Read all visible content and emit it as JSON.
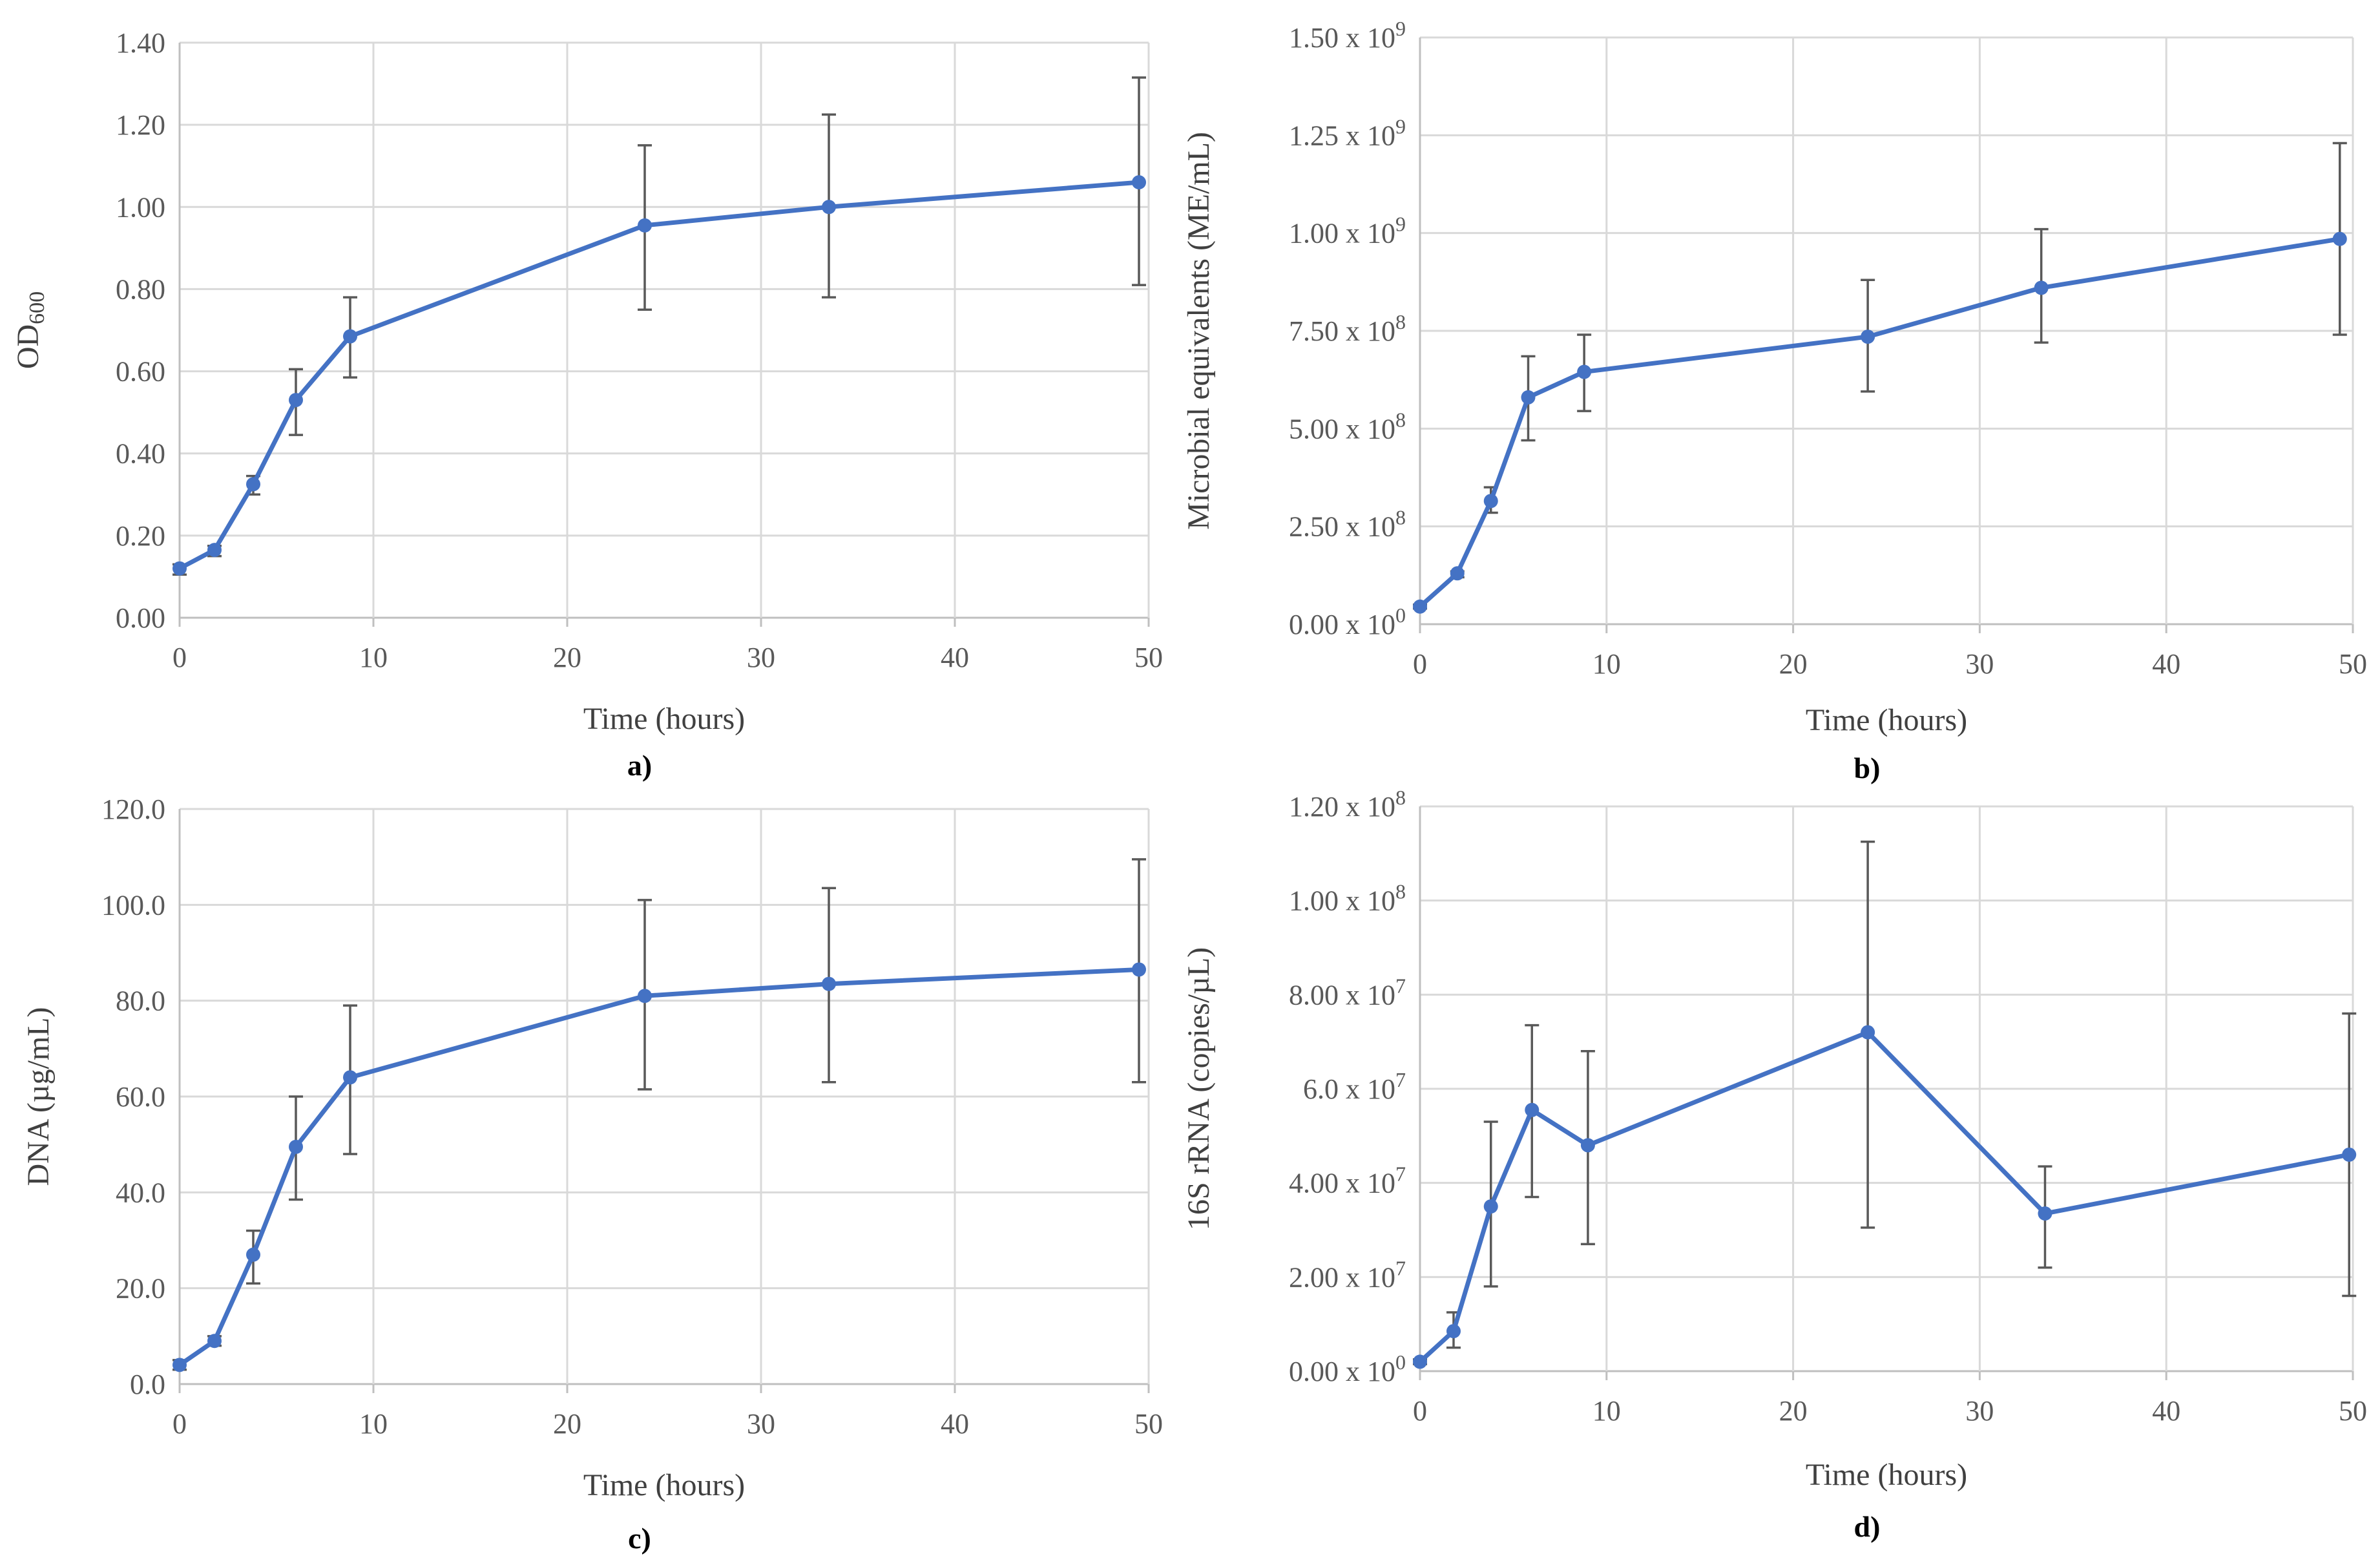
{
  "colors": {
    "series": "#4472C4"
  },
  "chart_data": [
    {
      "id": "a",
      "type": "line",
      "panel_label": "a)",
      "xlabel": "Time (hours)",
      "ylabel": "OD",
      "ylabel_sub": "600",
      "xlim": [
        0,
        50
      ],
      "ylim": [
        0,
        1.4
      ],
      "xticks": [
        0,
        10,
        20,
        30,
        40,
        50
      ],
      "yticks": [
        0.0,
        0.2,
        0.4,
        0.6,
        0.8,
        1.0,
        1.2,
        1.4
      ],
      "ytick_labels": [
        "0.00",
        "0.20",
        "0.40",
        "0.60",
        "0.80",
        "1.00",
        "1.20",
        "1.40"
      ],
      "series": [
        {
          "name": "OD600",
          "x": [
            0,
            1.8,
            3.8,
            6,
            8.8,
            24,
            33.5,
            49.5
          ],
          "y": [
            0.12,
            0.165,
            0.325,
            0.53,
            0.685,
            0.955,
            1.0,
            1.06
          ],
          "err_low": [
            0.105,
            0.15,
            0.3,
            0.445,
            0.585,
            0.75,
            0.78,
            0.81
          ],
          "err_high": [
            0.13,
            0.175,
            0.345,
            0.605,
            0.78,
            1.15,
            1.225,
            1.315
          ]
        }
      ]
    },
    {
      "id": "b",
      "type": "line",
      "panel_label": "b)",
      "xlabel": "Time (hours)",
      "ylabel": "Microbial equivalents (ME/mL)",
      "xlim": [
        0,
        50
      ],
      "ylim": [
        0,
        1500000000
      ],
      "xticks": [
        0,
        10,
        20,
        30,
        40,
        50
      ],
      "yticks": [
        0,
        250000000,
        500000000,
        750000000,
        1000000000,
        1250000000,
        1500000000
      ],
      "ytick_labels": [
        {
          "m": "0.00 x 10",
          "e": "0"
        },
        {
          "m": "2.50 x 10",
          "e": "8"
        },
        {
          "m": "5.00 x 10",
          "e": "8"
        },
        {
          "m": "7.50 x 10",
          "e": "8"
        },
        {
          "m": "1.00 x 10",
          "e": "9"
        },
        {
          "m": "1.25 x 10",
          "e": "9"
        },
        {
          "m": "1.50 x 10",
          "e": "9"
        }
      ],
      "series": [
        {
          "name": "ME/mL",
          "x": [
            0,
            2,
            3.8,
            5.8,
            8.8,
            24,
            33.3,
            49.3
          ],
          "y": [
            45000000,
            130000000,
            315000000,
            580000000,
            645000000,
            735000000,
            860000000,
            985000000
          ],
          "err_low": [
            40000000,
            120000000,
            285000000,
            470000000,
            545000000,
            595000000,
            720000000,
            740000000
          ],
          "err_high": [
            50000000,
            135000000,
            350000000,
            685000000,
            740000000,
            880000000,
            1010000000,
            1230000000
          ]
        }
      ]
    },
    {
      "id": "c",
      "type": "line",
      "panel_label": "c)",
      "xlabel": "Time (hours)",
      "ylabel": "DNA (µg/mL)",
      "xlim": [
        0,
        50
      ],
      "ylim": [
        0,
        120
      ],
      "xticks": [
        0,
        10,
        20,
        30,
        40,
        50
      ],
      "yticks": [
        0,
        20,
        40,
        60,
        80,
        100,
        120
      ],
      "ytick_labels": [
        "0.0",
        "20.0",
        "40.0",
        "60.0",
        "80.0",
        "100.0",
        "120.0"
      ],
      "series": [
        {
          "name": "DNA",
          "x": [
            0,
            1.8,
            3.8,
            6,
            8.8,
            24,
            33.5,
            49.5
          ],
          "y": [
            4,
            9,
            27,
            49.5,
            64,
            81,
            83.5,
            86.5
          ],
          "err_low": [
            3,
            8,
            21,
            38.5,
            48,
            61.5,
            63,
            63
          ],
          "err_high": [
            5,
            10,
            32,
            60,
            79,
            101,
            103.5,
            109.5
          ]
        }
      ]
    },
    {
      "id": "d",
      "type": "line",
      "panel_label": "d)",
      "xlabel": "Time (hours)",
      "ylabel": "16S rRNA (copies/µL)",
      "xlim": [
        0,
        50
      ],
      "ylim": [
        0,
        120000000
      ],
      "xticks": [
        0,
        10,
        20,
        30,
        40,
        50
      ],
      "yticks": [
        0,
        20000000,
        40000000,
        60000000,
        80000000,
        100000000,
        120000000
      ],
      "ytick_labels": [
        {
          "m": "0.00 x 10",
          "e": "0"
        },
        {
          "m": "2.00 x 10",
          "e": "7"
        },
        {
          "m": "4.00 x 10",
          "e": "7"
        },
        {
          "m": "6.0 x 10",
          "e": "7"
        },
        {
          "m": "8.00 x 10",
          "e": "7"
        },
        {
          "m": "1.00 x 10",
          "e": "8"
        },
        {
          "m": "1.20 x 10",
          "e": "8"
        }
      ],
      "series": [
        {
          "name": "16S rRNA",
          "x": [
            0,
            1.8,
            3.8,
            6,
            9,
            24,
            33.5,
            49.8
          ],
          "y": [
            2000000,
            8500000,
            35000000,
            55500000,
            48000000,
            72000000,
            33500000,
            46000000
          ],
          "err_low": [
            1500000,
            5000000,
            18000000,
            37000000,
            27000000,
            30500000,
            22000000,
            16000000
          ],
          "err_high": [
            2500000,
            12500000,
            53000000,
            73500000,
            68000000,
            112500000,
            43500000,
            76000000
          ]
        }
      ]
    }
  ]
}
